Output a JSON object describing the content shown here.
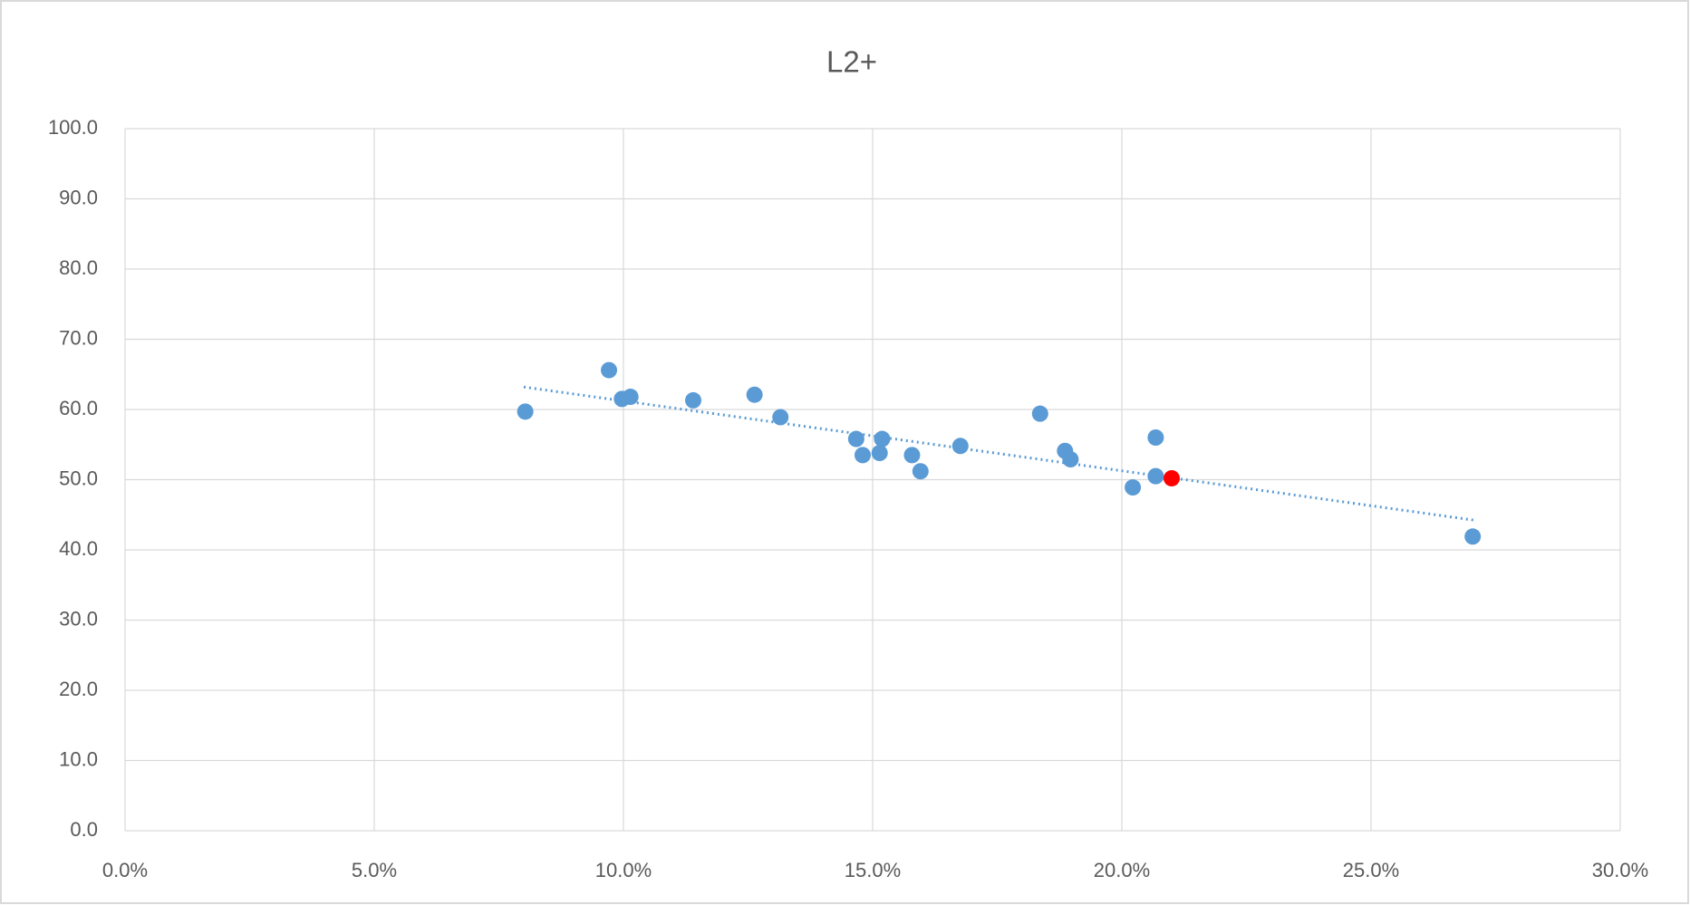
{
  "chart_data": {
    "type": "scatter",
    "title": "L2+",
    "series": [
      {
        "color": "#5b9bd5",
        "x": [
          8.03,
          9.71,
          9.97,
          10.14,
          11.4,
          12.63,
          13.15,
          14.67,
          14.8,
          15.14,
          15.19,
          15.79,
          15.96,
          16.76,
          18.36,
          18.86,
          18.97,
          20.22,
          20.68,
          20.68,
          27.04
        ],
        "values": [
          59.7,
          65.6,
          61.5,
          61.8,
          61.3,
          62.1,
          58.9,
          55.8,
          53.5,
          53.8,
          55.8,
          53.5,
          51.2,
          54.8,
          59.4,
          54.1,
          52.9,
          48.9,
          56.0,
          50.5,
          41.9
        ]
      },
      {
        "color": "#ff0000",
        "x": [
          21.0
        ],
        "values": [
          50.2
        ]
      }
    ],
    "trendline": {
      "color": "#5b9bd5",
      "x": [
        8.0,
        27.1
      ],
      "values": [
        63.2,
        44.2
      ]
    },
    "xlim": [
      0,
      30
    ],
    "xticks": [
      {
        "value": 0,
        "label": "0.0%"
      },
      {
        "value": 5,
        "label": "5.0%"
      },
      {
        "value": 10,
        "label": "10.0%"
      },
      {
        "value": 15,
        "label": "15.0%"
      },
      {
        "value": 20,
        "label": "20.0%"
      },
      {
        "value": 25,
        "label": "25.0%"
      },
      {
        "value": 30,
        "label": "30.0%"
      }
    ],
    "ylim": [
      0,
      100
    ],
    "yticks": [
      {
        "value": 0,
        "label": "0.0"
      },
      {
        "value": 10,
        "label": "10.0"
      },
      {
        "value": 20,
        "label": "20.0"
      },
      {
        "value": 30,
        "label": "30.0"
      },
      {
        "value": 40,
        "label": "40.0"
      },
      {
        "value": 50,
        "label": "50.0"
      },
      {
        "value": 60,
        "label": "60.0"
      },
      {
        "value": 70,
        "label": "70.0"
      },
      {
        "value": 80,
        "label": "80.0"
      },
      {
        "value": 90,
        "label": "90.0"
      },
      {
        "value": 100,
        "label": "100.0"
      }
    ],
    "grid": true
  }
}
